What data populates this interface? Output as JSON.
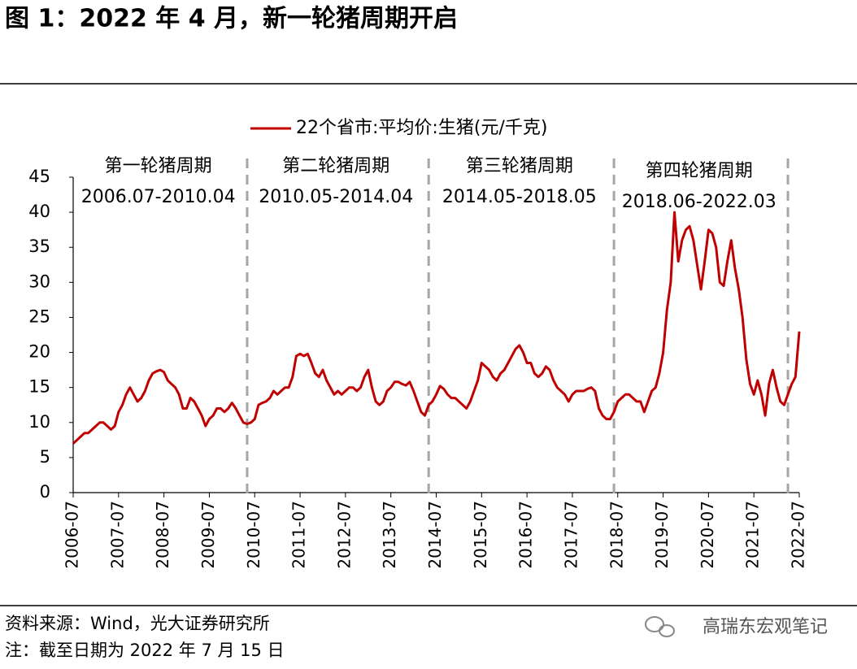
{
  "header": {
    "title": "图 1：2022 年 4 月，新一轮猪周期开启"
  },
  "chart_data": {
    "type": "line",
    "legend": "top",
    "series": [
      {
        "name": "22个省市:平均价:生猪(元/千克)",
        "color": "#c00000",
        "values": [
          7,
          7.5,
          8,
          8.5,
          8.5,
          9,
          9.5,
          10,
          10,
          9.5,
          9,
          9.5,
          11.5,
          12.5,
          14,
          15,
          14,
          13,
          13.5,
          14.5,
          16,
          17,
          17.3,
          17.5,
          17.2,
          16,
          15.5,
          15,
          14,
          12,
          12,
          13.5,
          13,
          12,
          11,
          9.5,
          10.5,
          11,
          12,
          12,
          11.5,
          12,
          12.8,
          12,
          11,
          10,
          9.8,
          10,
          10.5,
          12.5,
          12.8,
          13,
          13.5,
          14.5,
          14,
          14.5,
          15,
          15,
          16.5,
          19.5,
          19.8,
          19.5,
          19.8,
          18.5,
          17,
          16.5,
          17.5,
          16,
          15,
          14,
          14.5,
          14,
          14.5,
          15,
          15,
          14.5,
          15,
          16.5,
          17.5,
          15,
          13,
          12.5,
          13,
          14.5,
          15,
          15.8,
          15.8,
          15.5,
          15.3,
          15.8,
          14.5,
          13,
          11.5,
          11,
          12.5,
          13,
          14,
          15.2,
          14.8,
          14,
          13.5,
          13.5,
          13,
          12.5,
          12,
          13,
          14.5,
          16,
          18.5,
          18,
          17.5,
          16.5,
          16,
          17,
          17.5,
          18.5,
          19.5,
          20.5,
          21,
          20,
          18.5,
          18.5,
          17,
          16.5,
          17,
          18,
          17.5,
          16,
          15,
          14.5,
          14,
          13,
          14,
          14.5,
          14.5,
          14.5,
          14.8,
          15,
          14.5,
          12,
          11,
          10.5,
          10.5,
          11.5,
          13,
          13.5,
          14,
          14,
          13.5,
          13,
          13,
          11.5,
          13,
          14.5,
          15,
          17,
          20,
          26,
          30,
          40,
          33,
          36,
          37.5,
          38,
          36,
          32.5,
          29,
          33,
          37.5,
          37,
          35,
          30,
          29.5,
          33,
          36,
          32,
          29,
          25,
          19,
          15.5,
          14,
          16,
          14,
          11,
          15.5,
          17.5,
          15,
          13,
          12.5,
          14,
          15.5,
          16.5,
          23
        ]
      }
    ],
    "x": [
      "2006-07",
      "2006-08",
      "2006-09",
      "2006-10",
      "2006-11",
      "2006-12",
      "2007-01",
      "2007-02",
      "2007-03",
      "2007-04",
      "2007-05",
      "2007-06",
      "2007-07",
      "2007-08",
      "2007-09",
      "2007-10",
      "2007-11",
      "2007-12",
      "2008-01",
      "2008-02",
      "2008-03",
      "2008-04",
      "2008-05",
      "2008-06",
      "2008-07",
      "2008-08",
      "2008-09",
      "2008-10",
      "2008-11",
      "2008-12",
      "2009-01",
      "2009-02",
      "2009-03",
      "2009-04",
      "2009-05",
      "2009-06",
      "2009-07",
      "2009-08",
      "2009-09",
      "2009-10",
      "2009-11",
      "2009-12",
      "2010-01",
      "2010-02",
      "2010-03",
      "2010-04",
      "2010-05",
      "2010-06",
      "2010-07",
      "2010-08",
      "2010-09",
      "2010-10",
      "2010-11",
      "2010-12",
      "2011-01",
      "2011-02",
      "2011-03",
      "2011-04",
      "2011-05",
      "2011-06",
      "2011-07",
      "2011-08",
      "2011-09",
      "2011-10",
      "2011-11",
      "2011-12",
      "2012-01",
      "2012-02",
      "2012-03",
      "2012-04",
      "2012-05",
      "2012-06",
      "2012-07",
      "2012-08",
      "2012-09",
      "2012-10",
      "2012-11",
      "2012-12",
      "2013-01",
      "2013-02",
      "2013-03",
      "2013-04",
      "2013-05",
      "2013-06",
      "2013-07",
      "2013-08",
      "2013-09",
      "2013-10",
      "2013-11",
      "2013-12",
      "2014-01",
      "2014-02",
      "2014-03",
      "2014-04",
      "2014-05",
      "2014-06",
      "2014-07",
      "2014-08",
      "2014-09",
      "2014-10",
      "2014-11",
      "2014-12",
      "2015-01",
      "2015-02",
      "2015-03",
      "2015-04",
      "2015-05",
      "2015-06",
      "2015-07",
      "2015-08",
      "2015-09",
      "2015-10",
      "2015-11",
      "2015-12",
      "2016-01",
      "2016-02",
      "2016-03",
      "2016-04",
      "2016-05",
      "2016-06",
      "2016-07",
      "2016-08",
      "2016-09",
      "2016-10",
      "2016-11",
      "2016-12",
      "2017-01",
      "2017-02",
      "2017-03",
      "2017-04",
      "2017-05",
      "2017-06",
      "2017-07",
      "2017-08",
      "2017-09",
      "2017-10",
      "2017-11",
      "2017-12",
      "2018-01",
      "2018-02",
      "2018-03",
      "2018-04",
      "2018-05",
      "2018-06",
      "2018-07",
      "2018-08",
      "2018-09",
      "2018-10",
      "2018-11",
      "2018-12",
      "2019-01",
      "2019-02",
      "2019-03",
      "2019-04",
      "2019-05",
      "2019-06",
      "2019-07",
      "2019-08",
      "2019-09",
      "2019-10",
      "2019-11",
      "2019-12",
      "2020-01",
      "2020-02",
      "2020-03",
      "2020-04",
      "2020-05",
      "2020-06",
      "2020-07",
      "2020-08",
      "2020-09",
      "2020-10",
      "2020-11",
      "2020-12",
      "2021-01",
      "2021-02",
      "2021-03",
      "2021-04",
      "2021-05",
      "2021-06",
      "2021-07",
      "2021-08",
      "2021-09",
      "2021-10",
      "2021-11",
      "2021-12",
      "2022-01",
      "2022-02",
      "2022-03",
      "2022-04",
      "2022-05",
      "2022-06",
      "2022-07"
    ],
    "xlim": [
      "2006-07",
      "2022-07"
    ],
    "xticks": [
      "2006-07",
      "2007-07",
      "2008-07",
      "2009-07",
      "2010-07",
      "2011-07",
      "2012-07",
      "2013-07",
      "2014-07",
      "2015-07",
      "2016-07",
      "2017-07",
      "2018-07",
      "2019-07",
      "2020-07",
      "2021-07",
      "2022-07"
    ],
    "ylim": [
      0,
      45
    ],
    "yticks": [
      0,
      5,
      10,
      15,
      20,
      25,
      30,
      35,
      40,
      45
    ],
    "annotations": [
      {
        "label": "第一轮猪周期",
        "period": "2006.07-2010.04"
      },
      {
        "label": "第二轮猪周期",
        "period": "2010.05-2014.04"
      },
      {
        "label": "第三轮猪周期",
        "period": "2014.05-2018.05"
      },
      {
        "label": "第四轮猪周期",
        "period": "2018.06-2022.03"
      }
    ]
  },
  "footer": {
    "source": "资料来源：Wind，光大证券研究所",
    "note": "注：截至日期为 2022 年 7 月 15 日",
    "watermark": "高瑞东宏观笔记"
  }
}
